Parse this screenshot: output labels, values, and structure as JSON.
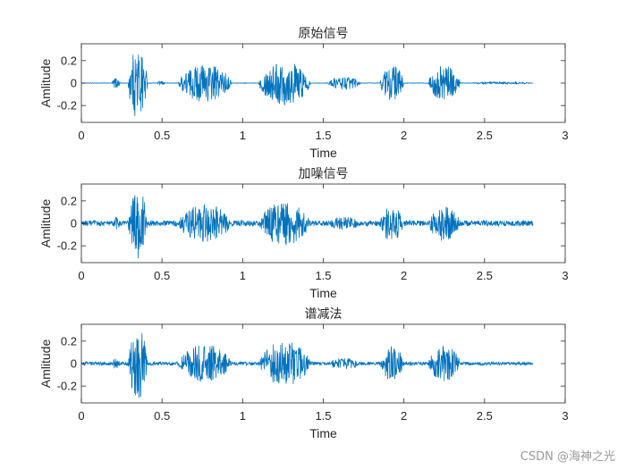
{
  "chart_data": [
    {
      "type": "line",
      "title": "原始信号",
      "xlabel": "Time",
      "ylabel": "Amlitude",
      "xlim": [
        0,
        3
      ],
      "ylim": [
        -0.35,
        0.35
      ],
      "xticks": [
        0,
        0.5,
        1,
        1.5,
        2,
        2.5,
        3
      ],
      "xtick_labels": [
        "0",
        "0.5",
        "1",
        "1.5",
        "2",
        "2.5",
        "3"
      ],
      "yticks": [
        0.2,
        0,
        -0.2
      ],
      "ytick_labels": [
        "0.2",
        "0",
        "-0.2"
      ],
      "grid": false,
      "color": "#0072BD",
      "series": [
        {
          "duration": 2.8,
          "noise_floor": 0.002,
          "segments": [
            {
              "start": 0.19,
              "end": 0.24,
              "amplitude": 0.05
            },
            {
              "start": 0.29,
              "end": 0.41,
              "amplitude": 0.32
            },
            {
              "start": 0.47,
              "end": 0.52,
              "amplitude": 0.02
            },
            {
              "start": 0.6,
              "end": 0.93,
              "amplitude": 0.17
            },
            {
              "start": 1.1,
              "end": 1.42,
              "amplitude": 0.2
            },
            {
              "start": 1.53,
              "end": 1.73,
              "amplitude": 0.06
            },
            {
              "start": 1.85,
              "end": 2.0,
              "amplitude": 0.16
            },
            {
              "start": 2.15,
              "end": 2.35,
              "amplitude": 0.16
            },
            {
              "start": 2.4,
              "end": 2.8,
              "amplitude": 0.01
            }
          ]
        }
      ]
    },
    {
      "type": "line",
      "title": "加噪信号",
      "xlabel": "Time",
      "ylabel": "Amlitude",
      "xlim": [
        0,
        3
      ],
      "ylim": [
        -0.35,
        0.35
      ],
      "xticks": [
        0,
        0.5,
        1,
        1.5,
        2,
        2.5,
        3
      ],
      "xtick_labels": [
        "0",
        "0.5",
        "1",
        "1.5",
        "2",
        "2.5",
        "3"
      ],
      "yticks": [
        0.2,
        0,
        -0.2
      ],
      "ytick_labels": [
        "0.2",
        "0",
        "-0.2"
      ],
      "grid": false,
      "color": "#0072BD",
      "series": [
        {
          "duration": 2.8,
          "noise_floor": 0.025,
          "segments": [
            {
              "start": 0.19,
              "end": 0.24,
              "amplitude": 0.06
            },
            {
              "start": 0.29,
              "end": 0.41,
              "amplitude": 0.32
            },
            {
              "start": 0.6,
              "end": 0.93,
              "amplitude": 0.17
            },
            {
              "start": 1.1,
              "end": 1.42,
              "amplitude": 0.2
            },
            {
              "start": 1.53,
              "end": 1.73,
              "amplitude": 0.06
            },
            {
              "start": 1.85,
              "end": 2.0,
              "amplitude": 0.16
            },
            {
              "start": 2.15,
              "end": 2.35,
              "amplitude": 0.16
            }
          ]
        }
      ]
    },
    {
      "type": "line",
      "title": "谱减法",
      "xlabel": "Time",
      "ylabel": "Amlitude",
      "xlim": [
        0,
        3
      ],
      "ylim": [
        -0.35,
        0.35
      ],
      "xticks": [
        0,
        0.5,
        1,
        1.5,
        2,
        2.5,
        3
      ],
      "xtick_labels": [
        "0",
        "0.5",
        "1",
        "1.5",
        "2",
        "2.5",
        "3"
      ],
      "yticks": [
        0.2,
        0,
        -0.2
      ],
      "ytick_labels": [
        "0.2",
        "0",
        "-0.2"
      ],
      "grid": false,
      "color": "#0072BD",
      "series": [
        {
          "duration": 2.8,
          "noise_floor": 0.015,
          "segments": [
            {
              "start": 0.19,
              "end": 0.24,
              "amplitude": 0.05
            },
            {
              "start": 0.29,
              "end": 0.41,
              "amplitude": 0.32
            },
            {
              "start": 0.6,
              "end": 0.93,
              "amplitude": 0.17
            },
            {
              "start": 1.1,
              "end": 1.42,
              "amplitude": 0.2
            },
            {
              "start": 1.53,
              "end": 1.73,
              "amplitude": 0.05
            },
            {
              "start": 1.85,
              "end": 2.0,
              "amplitude": 0.16
            },
            {
              "start": 2.15,
              "end": 2.35,
              "amplitude": 0.16
            }
          ]
        }
      ]
    }
  ],
  "watermark": "CSDN @海神之光"
}
